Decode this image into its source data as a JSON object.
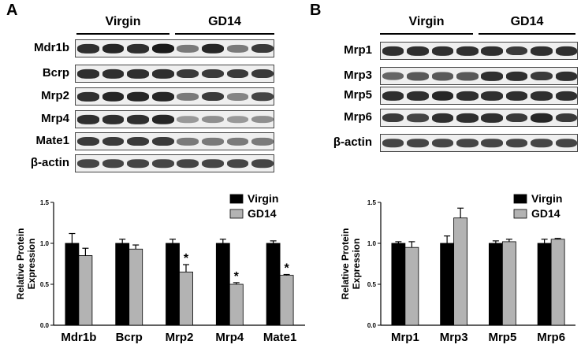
{
  "panelA": {
    "letter": "A",
    "groups": [
      "Virgin",
      "GD14"
    ],
    "blots": [
      {
        "label": "Mdr1b",
        "intensity": [
          0.9,
          0.95,
          0.9,
          1.0,
          0.55,
          0.95,
          0.55,
          0.85
        ]
      },
      {
        "label": "Bcrp",
        "intensity": [
          0.9,
          0.9,
          0.9,
          0.9,
          0.85,
          0.85,
          0.85,
          0.85
        ]
      },
      {
        "label": "Mrp2",
        "intensity": [
          0.9,
          0.95,
          0.95,
          0.95,
          0.55,
          0.85,
          0.5,
          0.8
        ]
      },
      {
        "label": "Mrp4",
        "intensity": [
          0.9,
          0.9,
          0.9,
          0.95,
          0.4,
          0.45,
          0.4,
          0.45
        ]
      },
      {
        "label": "Mate1",
        "intensity": [
          0.85,
          0.85,
          0.85,
          0.85,
          0.55,
          0.55,
          0.55,
          0.55
        ]
      },
      {
        "label": "β-actin",
        "intensity": [
          0.8,
          0.8,
          0.8,
          0.8,
          0.8,
          0.8,
          0.8,
          0.8
        ]
      }
    ]
  },
  "panelB": {
    "letter": "B",
    "groups": [
      "Virgin",
      "GD14"
    ],
    "blots": [
      {
        "label": "Mrp1",
        "intensity": [
          0.9,
          0.9,
          0.9,
          0.9,
          0.9,
          0.85,
          0.9,
          0.9
        ]
      },
      {
        "label": "Mrp3",
        "intensity": [
          0.65,
          0.7,
          0.7,
          0.7,
          0.9,
          0.9,
          0.85,
          0.9
        ]
      },
      {
        "label": "Mrp5",
        "intensity": [
          0.9,
          0.9,
          0.95,
          0.9,
          0.9,
          0.9,
          0.9,
          0.9
        ]
      },
      {
        "label": "Mrp6",
        "intensity": [
          0.85,
          0.8,
          0.9,
          0.9,
          0.9,
          0.85,
          0.95,
          0.85
        ]
      },
      {
        "label": "β-actin",
        "intensity": [
          0.8,
          0.8,
          0.8,
          0.8,
          0.8,
          0.8,
          0.8,
          0.8
        ]
      }
    ]
  },
  "chart_data": [
    {
      "type": "bar",
      "ylabel": "Relative Protein Expression",
      "ylim": [
        0,
        1.5
      ],
      "yticks": [
        "0.0",
        "0.5",
        "1.0",
        "1.5"
      ],
      "categories": [
        "Mdr1b",
        "Bcrp",
        "Mrp2",
        "Mrp4",
        "Mate1"
      ],
      "series": [
        {
          "name": "Virgin",
          "color": "#000000",
          "values": [
            1.0,
            1.0,
            1.0,
            1.0,
            1.0
          ],
          "errors": [
            0.12,
            0.05,
            0.05,
            0.05,
            0.03
          ]
        },
        {
          "name": "GD14",
          "color": "#b3b3b3",
          "values": [
            0.85,
            0.93,
            0.65,
            0.5,
            0.61
          ],
          "errors": [
            0.09,
            0.05,
            0.09,
            0.02,
            0.01
          ]
        }
      ],
      "significance": [
        "",
        "",
        "*",
        "*",
        "*"
      ],
      "legend": "top-right"
    },
    {
      "type": "bar",
      "ylabel": "Relative Protein Expression",
      "ylim": [
        0,
        1.5
      ],
      "yticks": [
        "0.0",
        "0.5",
        "1.0",
        "1.5"
      ],
      "categories": [
        "Mrp1",
        "Mrp3",
        "Mrp5",
        "Mrp6"
      ],
      "series": [
        {
          "name": "Virgin",
          "color": "#000000",
          "values": [
            1.0,
            1.0,
            1.0,
            1.0
          ],
          "errors": [
            0.02,
            0.09,
            0.03,
            0.05
          ]
        },
        {
          "name": "GD14",
          "color": "#b3b3b3",
          "values": [
            0.95,
            1.31,
            1.02,
            1.05
          ],
          "errors": [
            0.07,
            0.12,
            0.03,
            0.01
          ]
        }
      ],
      "significance": [
        "",
        "",
        "",
        ""
      ],
      "legend": "top-right"
    }
  ]
}
